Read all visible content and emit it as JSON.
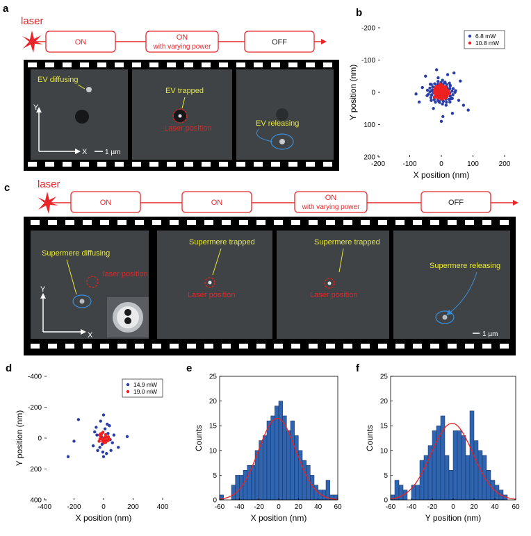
{
  "panels": {
    "a": "a",
    "b": "b",
    "c": "c",
    "d": "d",
    "e": "e",
    "f": "f"
  },
  "panel_a": {
    "laser_label": "laser",
    "states": [
      "ON",
      "ON",
      "with varying power",
      "OFF"
    ],
    "annotations": {
      "ev_diffusing": "EV diffusing",
      "ev_trapped": "EV trapped",
      "laser_position": "Laser position",
      "ev_releasing": "EV releasing",
      "axis_x": "X",
      "axis_y": "Y",
      "scale": "1 µm"
    }
  },
  "panel_c": {
    "laser_label": "laser",
    "states": [
      "ON",
      "ON",
      "ON",
      "with varying power",
      "OFF"
    ],
    "annotations": {
      "supermere_diffusing": "Supermere diffusing",
      "laser_position_lower": "laser position",
      "supermere_trapped_1": "Supermere trapped",
      "laser_position_1": "Laser position",
      "supermere_trapped_2": "Supermere trapped",
      "laser_position_2": "Laser position",
      "supermere_releasing": "Supermere releasing",
      "axis_x": "X",
      "axis_y": "Y",
      "scale": "1 µm"
    }
  },
  "chart_data": [
    {
      "panel": "b",
      "type": "scatter",
      "xlabel": "X position (nm)",
      "ylabel": "Y position (nm)",
      "xlim": [
        -200,
        200
      ],
      "ylim": [
        200,
        -200
      ],
      "y_inverted": true,
      "xticks": [
        -200,
        -100,
        0,
        100,
        200
      ],
      "yticks": [
        -200,
        -100,
        0,
        100,
        200
      ],
      "legend": "top-right",
      "series": [
        {
          "name": "6.8 mW",
          "color": "#2a3ea8",
          "spread_x": 28,
          "spread_y": 24,
          "points": [
            [
              -5,
              -2
            ],
            [
              10,
              5
            ],
            [
              -20,
              15
            ],
            [
              25,
              -10
            ],
            [
              30,
              20
            ],
            [
              -35,
              -25
            ],
            [
              15,
              40
            ],
            [
              -10,
              -45
            ],
            [
              45,
              -5
            ],
            [
              -45,
              10
            ],
            [
              55,
              25
            ],
            [
              -60,
              -15
            ],
            [
              20,
              -55
            ],
            [
              -25,
              50
            ],
            [
              70,
              40
            ],
            [
              -70,
              30
            ],
            [
              5,
              75
            ],
            [
              -15,
              -70
            ],
            [
              85,
              55
            ],
            [
              40,
              -60
            ],
            [
              -50,
              -50
            ],
            [
              60,
              -35
            ],
            [
              0,
              90
            ],
            [
              -80,
              5
            ],
            [
              35,
              65
            ],
            [
              10,
              -30
            ],
            [
              -30,
              -5
            ],
            [
              18,
              12
            ],
            [
              -8,
              28
            ],
            [
              28,
              -22
            ]
          ]
        },
        {
          "name": "10.8 mW",
          "color": "#ee2020",
          "spread_x": 14,
          "spread_y": 14,
          "points": [
            [
              0,
              0
            ],
            [
              5,
              -3
            ],
            [
              -6,
              4
            ],
            [
              10,
              8
            ],
            [
              -12,
              -9
            ],
            [
              14,
              -6
            ],
            [
              -4,
              13
            ],
            [
              8,
              -14
            ],
            [
              -15,
              2
            ],
            [
              18,
              10
            ],
            [
              -20,
              -12
            ],
            [
              3,
              20
            ],
            [
              -9,
              -20
            ],
            [
              22,
              -4
            ],
            [
              -22,
              15
            ],
            [
              12,
              18
            ],
            [
              -16,
              -18
            ],
            [
              25,
              5
            ],
            [
              -3,
              -25
            ],
            [
              0,
              12
            ]
          ]
        }
      ]
    },
    {
      "panel": "d",
      "type": "scatter",
      "xlabel": "X position (nm)",
      "ylabel": "Y position (nm)",
      "xlim": [
        -400,
        400
      ],
      "ylim": [
        400,
        -400
      ],
      "y_inverted": true,
      "xticks": [
        -400,
        -200,
        0,
        200,
        400
      ],
      "yticks": [
        -400,
        -200,
        0,
        200,
        400
      ],
      "legend": "top-right",
      "series": [
        {
          "name": "14.9 mW",
          "color": "#2a3ea8",
          "points": [
            [
              -170,
              -120
            ],
            [
              -240,
              120
            ],
            [
              -200,
              20
            ],
            [
              160,
              -10
            ],
            [
              0,
              -150
            ],
            [
              -20,
              -110
            ],
            [
              40,
              -80
            ],
            [
              -40,
              80
            ],
            [
              20,
              100
            ],
            [
              100,
              60
            ],
            [
              -60,
              -40
            ],
            [
              60,
              30
            ],
            [
              -10,
              40
            ],
            [
              30,
              -30
            ],
            [
              -30,
              20
            ],
            [
              10,
              -60
            ],
            [
              50,
              80
            ],
            [
              -50,
              -70
            ],
            [
              70,
              -20
            ],
            [
              -70,
              50
            ],
            [
              0,
              120
            ],
            [
              -15,
              -10
            ],
            [
              15,
              15
            ],
            [
              -25,
              60
            ],
            [
              25,
              -90
            ],
            [
              -5,
              90
            ],
            [
              45,
              10
            ],
            [
              -45,
              -20
            ]
          ]
        },
        {
          "name": "19.0 mW",
          "color": "#ee2020",
          "points": [
            [
              0,
              0
            ],
            [
              10,
              -5
            ],
            [
              -10,
              8
            ],
            [
              20,
              12
            ],
            [
              -18,
              -14
            ],
            [
              25,
              -6
            ],
            [
              -6,
              22
            ],
            [
              14,
              -22
            ],
            [
              -24,
              4
            ],
            [
              30,
              16
            ],
            [
              -28,
              -20
            ],
            [
              5,
              30
            ],
            [
              -12,
              -30
            ],
            [
              32,
              -8
            ],
            [
              -30,
              20
            ],
            [
              16,
              26
            ],
            [
              -20,
              -28
            ],
            [
              38,
              6
            ],
            [
              -4,
              -38
            ],
            [
              0,
              14
            ]
          ]
        }
      ]
    },
    {
      "panel": "e",
      "type": "bar",
      "xlabel": "X position (nm)",
      "ylabel": "Counts",
      "xlim": [
        -60,
        60
      ],
      "ylim": [
        0,
        25
      ],
      "xticks": [
        -60,
        -40,
        -20,
        0,
        20,
        40,
        60
      ],
      "yticks": [
        0,
        5,
        10,
        15,
        20,
        25
      ],
      "bin_width": 4,
      "bin_starts": [
        -60,
        -56,
        -52,
        -48,
        -44,
        -40,
        -36,
        -32,
        -28,
        -24,
        -20,
        -16,
        -12,
        -8,
        -4,
        0,
        4,
        8,
        12,
        16,
        20,
        24,
        28,
        32,
        36,
        40,
        44,
        48,
        52,
        56
      ],
      "values": [
        1,
        0,
        0,
        3,
        5,
        5,
        6,
        7,
        7,
        10,
        12,
        13,
        16,
        17,
        19,
        20,
        17,
        14,
        16,
        13,
        10,
        8,
        7,
        5,
        3,
        2,
        2,
        4,
        1,
        1
      ],
      "fit": {
        "type": "gaussian",
        "amplitude": 16.5,
        "mean": -1.5,
        "sigma": 19,
        "color": "#ee2020"
      }
    },
    {
      "panel": "f",
      "type": "bar",
      "xlabel": "Y position (nm)",
      "ylabel": "Counts",
      "xlim": [
        -60,
        60
      ],
      "ylim": [
        0,
        25
      ],
      "xticks": [
        -60,
        -40,
        -20,
        0,
        20,
        40,
        60
      ],
      "yticks": [
        0,
        5,
        10,
        15,
        20,
        25
      ],
      "bin_width": 4,
      "bin_starts": [
        -60,
        -56,
        -52,
        -48,
        -44,
        -40,
        -36,
        -32,
        -28,
        -24,
        -20,
        -16,
        -12,
        -8,
        -4,
        0,
        4,
        8,
        12,
        16,
        20,
        24,
        28,
        32,
        36,
        40,
        44,
        48,
        52,
        56
      ],
      "values": [
        1,
        4,
        3,
        2,
        0,
        3,
        3,
        8,
        9,
        11,
        14,
        15,
        17,
        9,
        6,
        14,
        14,
        13,
        9,
        18,
        12,
        10,
        9,
        6,
        4,
        3,
        2,
        1,
        0,
        0
      ],
      "fit": {
        "type": "gaussian",
        "amplitude": 15.5,
        "mean": -1,
        "sigma": 20,
        "color": "#ee2020"
      }
    }
  ]
}
